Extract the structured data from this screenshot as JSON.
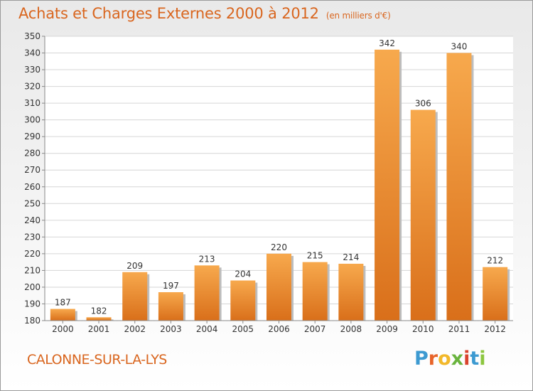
{
  "chart_data": {
    "type": "bar",
    "title": "Achats et Charges Externes 2000 à 2012",
    "subtitle": "(en milliers d'€)",
    "categories": [
      "2000",
      "2001",
      "2002",
      "2003",
      "2004",
      "2005",
      "2006",
      "2007",
      "2008",
      "2009",
      "2010",
      "2011",
      "2012"
    ],
    "values": [
      187,
      182,
      209,
      197,
      213,
      204,
      220,
      215,
      214,
      342,
      306,
      340,
      212
    ],
    "ylim": [
      180,
      350
    ],
    "yticks": [
      180,
      190,
      200,
      210,
      220,
      230,
      240,
      250,
      260,
      270,
      280,
      290,
      300,
      310,
      320,
      330,
      340,
      350
    ],
    "grid": true,
    "legend": "none",
    "bar_color": "#f08a2c",
    "bar_color_light": "#f7a94d",
    "bar_color_dark": "#d96f1a"
  },
  "footer": {
    "commune": "CALONNE-SUR-LA-LYS"
  },
  "logo": {
    "letters": [
      "P",
      "r",
      "o",
      "x",
      "i",
      "t",
      "i"
    ],
    "colors": [
      "#3d9ad1",
      "#e8642a",
      "#f2b82a",
      "#6ab43e",
      "#d9432e",
      "#3d9ad1",
      "#8cc63f"
    ]
  }
}
